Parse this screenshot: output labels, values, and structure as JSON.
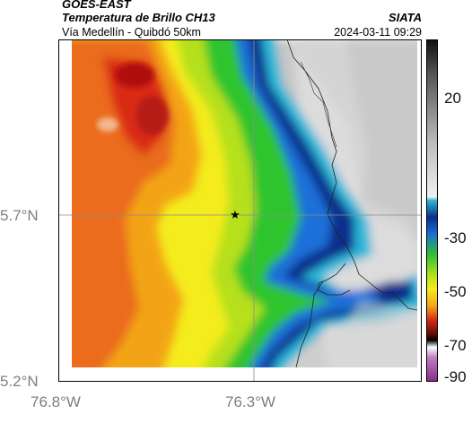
{
  "header": {
    "satellite": "GOES-EAST",
    "product": "Temperatura de Brillo CH13",
    "region": "Vía Medellín - Quibdó 50km",
    "organization": "SIATA",
    "datetime": "2024-03-11 09:29"
  },
  "axes": {
    "lat_labels": [
      "5.7°N",
      "5.2°N"
    ],
    "lon_labels": [
      "76.8°W",
      "76.3°W"
    ]
  },
  "colorbar": {
    "labels": [
      "20",
      "-30",
      "-50",
      "-70",
      "-90"
    ]
  },
  "marker": {
    "symbol": "★"
  },
  "colors": {
    "coast": "#222222",
    "grid": "#8c8c8c"
  }
}
